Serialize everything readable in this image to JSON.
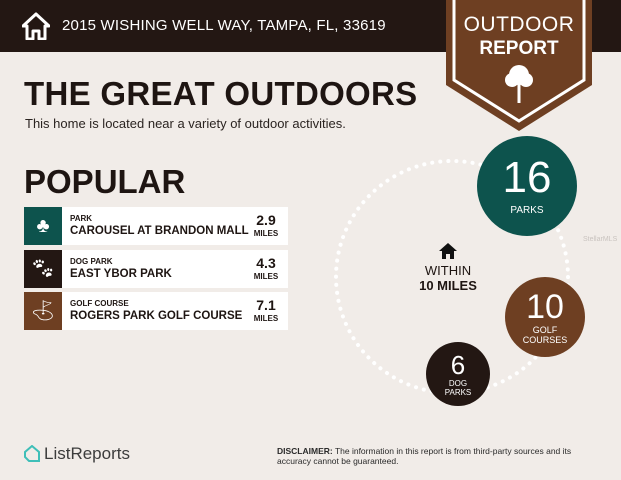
{
  "header": {
    "address": "2015 WISHING WELL WAY, TAMPA, FL, 33619",
    "icon": "home-icon"
  },
  "badge": {
    "line1": "OUTDOOR",
    "line2": "REPORT",
    "icon": "tree-icon",
    "color": "#6e3f22"
  },
  "title": "THE GREAT OUTDOORS",
  "subtitle": "This home is located near a variety of outdoor activities.",
  "popular": {
    "heading": "POPULAR",
    "items": [
      {
        "category": "PARK",
        "name": "CAROUSEL AT BRANDON MALL",
        "distance": "2.9",
        "unit": "MILES",
        "icon": "park-icon",
        "color": "#0d534d"
      },
      {
        "category": "DOG PARK",
        "name": "EAST YBOR PARK",
        "distance": "4.3",
        "unit": "MILES",
        "icon": "paw-icon",
        "color": "#231713"
      },
      {
        "category": "GOLF COURSE",
        "name": "ROGERS PARK GOLF COURSE",
        "distance": "7.1",
        "unit": "MILES",
        "icon": "golf-bag-icon",
        "color": "#6e3f22"
      }
    ]
  },
  "summary": {
    "within_line1": "WITHIN",
    "within_line2": "10 MILES",
    "counts": [
      {
        "value": "16",
        "label": "PARKS",
        "color": "#0d534d"
      },
      {
        "value": "10",
        "label1": "GOLF",
        "label2": "COURSES",
        "color": "#6e3f22"
      },
      {
        "value": "6",
        "label1": "DOG",
        "label2": "PARKS",
        "color": "#231713"
      }
    ]
  },
  "watermark": "StellarMLS",
  "footer": {
    "logo": "ListReports",
    "disclaimer_label": "DISCLAIMER:",
    "disclaimer_text": " The information in this report is from third-party sources and its accuracy cannot be guaranteed."
  }
}
